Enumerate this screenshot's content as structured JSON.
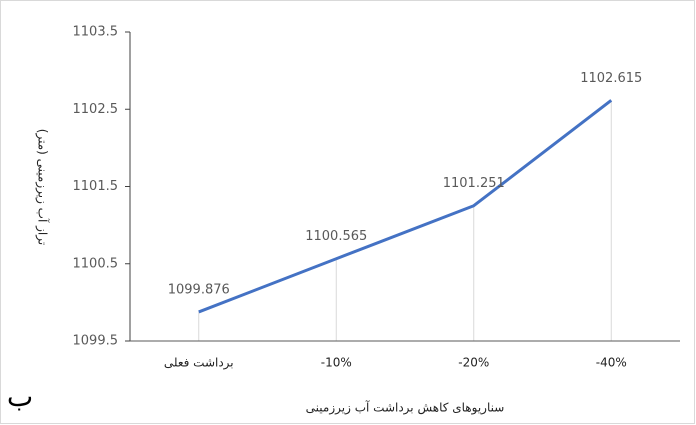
{
  "chart_data": {
    "type": "line",
    "y_label": "تراز آب زیرزمینی (متر)",
    "x_label": "سناریوهای کاهش برداشت آب زیرزمینی",
    "annotation": "ب",
    "categories": [
      "برداشت فعلی",
      "-10%",
      "-20%",
      "-40%"
    ],
    "series": [
      {
        "name": "تراز",
        "color": "#4472c4",
        "values": [
          1099.876,
          1100.565,
          1101.251,
          1102.615
        ]
      }
    ],
    "ylim": [
      1099.5,
      1103.5
    ],
    "yticks": [
      1099.5,
      1100.5,
      1101.5,
      1102.5,
      1103.5
    ],
    "drop_lines": true
  }
}
